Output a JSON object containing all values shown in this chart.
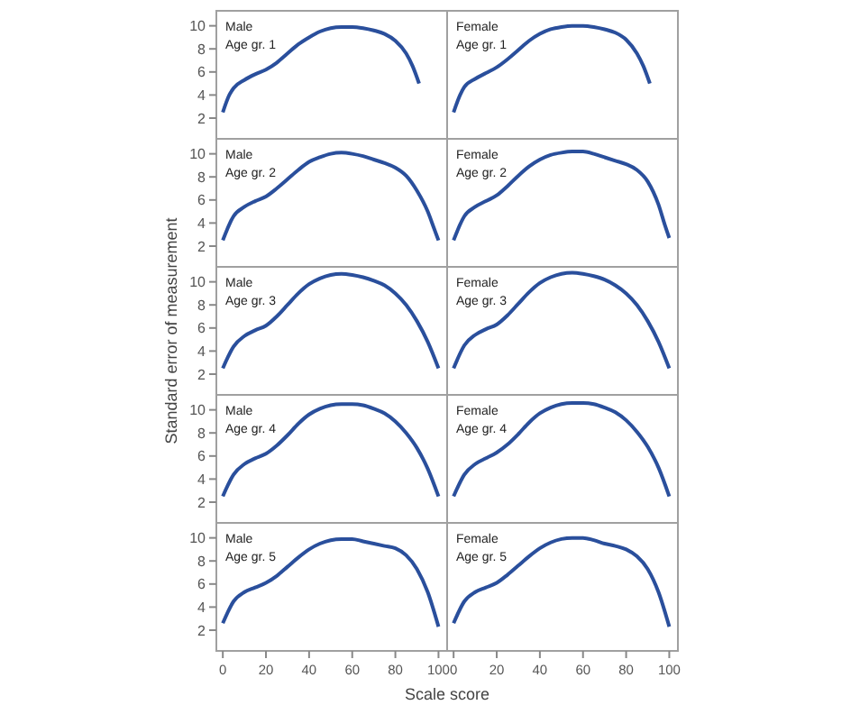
{
  "chart_data": [
    {
      "type": "line",
      "title": "Male",
      "subtitle": "Age gr. 1",
      "x": [
        0,
        3,
        5,
        10,
        15,
        20,
        25,
        30,
        35,
        40,
        45,
        50,
        55,
        60,
        65,
        70,
        75,
        80,
        85,
        88,
        91
      ],
      "series": [
        {
          "color": "#2a4f9c",
          "values": [
            2.5,
            4,
            4.6,
            5.3,
            5.8,
            6.2,
            6.8,
            7.6,
            8.4,
            9.0,
            9.5,
            9.8,
            9.9,
            9.9,
            9.8,
            9.6,
            9.3,
            8.7,
            7.6,
            6.5,
            5.0
          ]
        }
      ],
      "xlim": [
        -3,
        104
      ],
      "ylim": [
        0.2,
        11.3
      ],
      "xticks": [
        0,
        20,
        40,
        60,
        80,
        100
      ],
      "yticks": [
        2,
        4,
        6,
        8,
        10
      ],
      "tick_labels": "y",
      "line_style": "solid",
      "marker": "none",
      "grid": false
    },
    {
      "type": "line",
      "title": "Female",
      "subtitle": "Age gr. 1",
      "x": [
        0,
        3,
        5,
        10,
        15,
        20,
        25,
        30,
        35,
        40,
        45,
        50,
        55,
        60,
        65,
        70,
        75,
        80,
        85,
        88,
        91
      ],
      "series": [
        {
          "color": "#2a4f9c",
          "values": [
            2.5,
            4,
            4.7,
            5.4,
            5.9,
            6.4,
            7.1,
            7.9,
            8.7,
            9.3,
            9.7,
            9.9,
            10.0,
            10.0,
            9.9,
            9.7,
            9.4,
            8.8,
            7.6,
            6.5,
            5.0
          ]
        }
      ],
      "xlim": [
        -3,
        104
      ],
      "ylim": [
        0.2,
        11.3
      ],
      "xticks": [
        0,
        20,
        40,
        60,
        80,
        100
      ],
      "yticks": [
        2,
        4,
        6,
        8,
        10
      ],
      "tick_labels": false,
      "line_style": "solid",
      "marker": "none",
      "grid": false
    },
    {
      "type": "line",
      "title": "Male",
      "subtitle": "Age gr. 2",
      "x": [
        0,
        5,
        10,
        15,
        20,
        25,
        30,
        35,
        40,
        45,
        50,
        55,
        60,
        65,
        70,
        75,
        80,
        85,
        90,
        95,
        98,
        100
      ],
      "series": [
        {
          "color": "#2a4f9c",
          "values": [
            2.5,
            4.6,
            5.4,
            5.9,
            6.3,
            7.0,
            7.8,
            8.6,
            9.3,
            9.7,
            10.0,
            10.1,
            10.0,
            9.8,
            9.5,
            9.2,
            8.8,
            8.1,
            6.8,
            5.0,
            3.5,
            2.5
          ]
        }
      ],
      "xlim": [
        -3,
        104
      ],
      "ylim": [
        0.2,
        11.3
      ],
      "xticks": [
        0,
        20,
        40,
        60,
        80,
        100
      ],
      "yticks": [
        2,
        4,
        6,
        8,
        10
      ],
      "tick_labels": "y",
      "line_style": "solid",
      "marker": "none",
      "grid": false
    },
    {
      "type": "line",
      "title": "Female",
      "subtitle": "Age gr. 2",
      "x": [
        0,
        5,
        10,
        15,
        20,
        25,
        30,
        35,
        40,
        45,
        50,
        55,
        60,
        65,
        70,
        75,
        80,
        85,
        90,
        95,
        98,
        100
      ],
      "series": [
        {
          "color": "#2a4f9c",
          "values": [
            2.5,
            4.6,
            5.4,
            5.9,
            6.4,
            7.2,
            8.1,
            8.9,
            9.5,
            9.9,
            10.1,
            10.2,
            10.2,
            10.0,
            9.7,
            9.4,
            9.1,
            8.6,
            7.6,
            5.6,
            3.8,
            2.7
          ]
        }
      ],
      "xlim": [
        -3,
        104
      ],
      "ylim": [
        0.2,
        11.3
      ],
      "xticks": [
        0,
        20,
        40,
        60,
        80,
        100
      ],
      "yticks": [
        2,
        4,
        6,
        8,
        10
      ],
      "tick_labels": false,
      "line_style": "solid",
      "marker": "none",
      "grid": false
    },
    {
      "type": "line",
      "title": "Male",
      "subtitle": "Age gr. 3",
      "ylabel": "Standard error of measurement",
      "x": [
        0,
        5,
        10,
        15,
        20,
        25,
        30,
        35,
        40,
        45,
        50,
        55,
        60,
        65,
        70,
        75,
        80,
        85,
        90,
        95,
        100
      ],
      "series": [
        {
          "color": "#2a4f9c",
          "values": [
            2.5,
            4.4,
            5.3,
            5.8,
            6.2,
            7.0,
            8.0,
            9.0,
            9.8,
            10.3,
            10.6,
            10.7,
            10.6,
            10.4,
            10.1,
            9.7,
            9.0,
            8.0,
            6.6,
            4.8,
            2.5
          ]
        }
      ],
      "xlim": [
        -3,
        104
      ],
      "ylim": [
        0.2,
        11.3
      ],
      "xticks": [
        0,
        20,
        40,
        60,
        80,
        100
      ],
      "yticks": [
        2,
        4,
        6,
        8,
        10
      ],
      "tick_labels": "y",
      "line_style": "solid",
      "marker": "none",
      "grid": false
    },
    {
      "type": "line",
      "title": "Female",
      "subtitle": "Age gr. 3",
      "x": [
        0,
        5,
        10,
        15,
        20,
        25,
        30,
        35,
        40,
        45,
        50,
        55,
        60,
        65,
        70,
        75,
        80,
        85,
        90,
        95,
        100
      ],
      "series": [
        {
          "color": "#2a4f9c",
          "values": [
            2.5,
            4.5,
            5.4,
            5.9,
            6.3,
            7.1,
            8.1,
            9.1,
            9.9,
            10.4,
            10.7,
            10.8,
            10.7,
            10.5,
            10.2,
            9.7,
            9.0,
            8.0,
            6.6,
            4.8,
            2.5
          ]
        }
      ],
      "xlim": [
        -3,
        104
      ],
      "ylim": [
        0.2,
        11.3
      ],
      "xticks": [
        0,
        20,
        40,
        60,
        80,
        100
      ],
      "yticks": [
        2,
        4,
        6,
        8,
        10
      ],
      "tick_labels": false,
      "line_style": "solid",
      "marker": "none",
      "grid": false
    },
    {
      "type": "line",
      "title": "Male",
      "subtitle": "Age gr. 4",
      "x": [
        0,
        5,
        10,
        15,
        20,
        25,
        30,
        35,
        40,
        45,
        50,
        55,
        60,
        65,
        70,
        75,
        80,
        85,
        90,
        95,
        100
      ],
      "series": [
        {
          "color": "#2a4f9c",
          "values": [
            2.5,
            4.4,
            5.3,
            5.8,
            6.2,
            6.9,
            7.8,
            8.8,
            9.6,
            10.1,
            10.4,
            10.5,
            10.5,
            10.4,
            10.1,
            9.7,
            9.0,
            8.0,
            6.7,
            4.9,
            2.5
          ]
        }
      ],
      "xlim": [
        -3,
        104
      ],
      "ylim": [
        0.2,
        11.3
      ],
      "xticks": [
        0,
        20,
        40,
        60,
        80,
        100
      ],
      "yticks": [
        2,
        4,
        6,
        8,
        10
      ],
      "tick_labels": "y",
      "line_style": "solid",
      "marker": "none",
      "grid": false
    },
    {
      "type": "line",
      "title": "Female",
      "subtitle": "Age gr. 4",
      "x": [
        0,
        5,
        10,
        15,
        20,
        25,
        30,
        35,
        40,
        45,
        50,
        55,
        60,
        65,
        70,
        75,
        80,
        85,
        90,
        95,
        100
      ],
      "series": [
        {
          "color": "#2a4f9c",
          "values": [
            2.5,
            4.4,
            5.3,
            5.8,
            6.3,
            7.0,
            7.9,
            8.9,
            9.7,
            10.2,
            10.5,
            10.6,
            10.6,
            10.5,
            10.2,
            9.8,
            9.1,
            8.1,
            6.8,
            5.0,
            2.5
          ]
        }
      ],
      "xlim": [
        -3,
        104
      ],
      "ylim": [
        0.2,
        11.3
      ],
      "xticks": [
        0,
        20,
        40,
        60,
        80,
        100
      ],
      "yticks": [
        2,
        4,
        6,
        8,
        10
      ],
      "tick_labels": false,
      "line_style": "solid",
      "marker": "none",
      "grid": false
    },
    {
      "type": "line",
      "title": "Male",
      "subtitle": "Age gr. 5",
      "xlabel": "Scale score",
      "x": [
        0,
        5,
        10,
        15,
        20,
        25,
        30,
        35,
        40,
        45,
        50,
        55,
        60,
        65,
        70,
        75,
        80,
        85,
        90,
        95,
        100
      ],
      "series": [
        {
          "color": "#2a4f9c",
          "values": [
            2.6,
            4.5,
            5.3,
            5.7,
            6.1,
            6.7,
            7.5,
            8.3,
            9.0,
            9.5,
            9.8,
            9.9,
            9.9,
            9.7,
            9.5,
            9.3,
            9.1,
            8.5,
            7.3,
            5.3,
            2.3
          ]
        }
      ],
      "xlim": [
        -3,
        104
      ],
      "ylim": [
        0.2,
        11.3
      ],
      "xticks": [
        0,
        20,
        40,
        60,
        80,
        100
      ],
      "yticks": [
        2,
        4,
        6,
        8,
        10
      ],
      "line_style": "solid",
      "marker": "none",
      "grid": false
    },
    {
      "type": "line",
      "title": "Female",
      "subtitle": "Age gr. 5",
      "x": [
        0,
        5,
        10,
        15,
        20,
        25,
        30,
        35,
        40,
        45,
        50,
        55,
        60,
        65,
        70,
        75,
        80,
        85,
        90,
        95,
        100
      ],
      "series": [
        {
          "color": "#2a4f9c",
          "values": [
            2.6,
            4.5,
            5.3,
            5.7,
            6.1,
            6.8,
            7.6,
            8.4,
            9.1,
            9.6,
            9.9,
            10.0,
            10.0,
            9.8,
            9.5,
            9.3,
            9.0,
            8.4,
            7.3,
            5.3,
            2.3
          ]
        }
      ],
      "xlim": [
        -3,
        104
      ],
      "ylim": [
        0.2,
        11.3
      ],
      "xticks": [
        0,
        20,
        40,
        60,
        80,
        100
      ],
      "yticks": [
        2,
        4,
        6,
        8,
        10
      ],
      "tick_labels": "x",
      "line_style": "solid",
      "marker": "none",
      "grid": false
    }
  ]
}
